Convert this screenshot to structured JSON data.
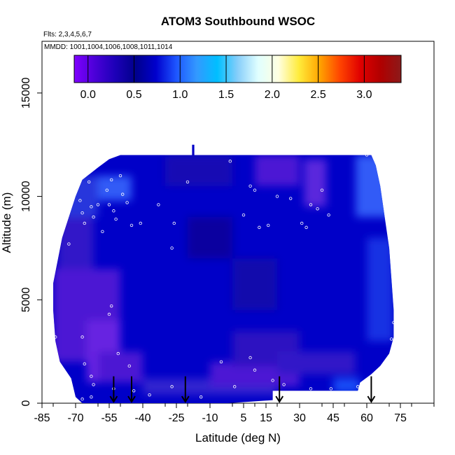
{
  "chart_data": {
    "type": "heatmap",
    "title": "ATOM3 Southbound WSOC",
    "subtitle_flights": "Flts: 2,3,4,5,6,7",
    "subtitle_dates": "MMDD: 1001,1004,1006,1008,1011,1014",
    "xlabel": "Latitude (deg N)",
    "ylabel": "Altitude (m)",
    "xlim": [
      -85,
      90
    ],
    "ylim": [
      0,
      17500
    ],
    "x_ticks": [
      -85,
      -70,
      -55,
      -40,
      -25,
      -10,
      5,
      15,
      30,
      45,
      60,
      75
    ],
    "y_ticks": [
      0,
      5000,
      10000,
      15000
    ],
    "colorbar": {
      "range": [
        -0.15,
        3.4
      ],
      "ticks": [
        0.0,
        0.5,
        1.0,
        1.5,
        2.0,
        2.5,
        3.0
      ],
      "tick_labels": [
        "0.0",
        "0.5",
        "1.0",
        "1.5",
        "2.0",
        "2.5",
        "3.0"
      ],
      "colors": [
        "#8000ff",
        "#4b00d8",
        "#1d00b8",
        "#00008b",
        "#0000cd",
        "#1e56ff",
        "#3399ff",
        "#00bfff",
        "#87cefa",
        "#e0ffff",
        "#ffffe0",
        "#ffeb3b",
        "#ffa500",
        "#ff4500",
        "#e00000",
        "#b00000",
        "#8b1a1a"
      ]
    },
    "field_color_low": "#0000c8",
    "field_color_purple": "#5a1fd6",
    "field_color_light": "#3a6cff",
    "arrow_latitudes": [
      -53,
      -45,
      -21,
      21,
      62
    ],
    "sample_points": [
      [
        -73,
        7700
      ],
      [
        -68,
        9800
      ],
      [
        -67,
        9200
      ],
      [
        -66,
        8700
      ],
      [
        -64,
        10700
      ],
      [
        -63,
        9500
      ],
      [
        -62,
        9000
      ],
      [
        -60,
        9600
      ],
      [
        -58,
        8300
      ],
      [
        -56,
        10300
      ],
      [
        -55,
        9600
      ],
      [
        -54,
        10800
      ],
      [
        -53,
        9300
      ],
      [
        -52,
        8900
      ],
      [
        -50,
        11000
      ],
      [
        -49,
        10100
      ],
      [
        -47,
        9700
      ],
      [
        -45,
        8600
      ],
      [
        -41,
        8700
      ],
      [
        -33,
        9600
      ],
      [
        -20,
        10700
      ],
      [
        -26,
        8700
      ],
      [
        -27,
        7500
      ],
      [
        -55,
        4300
      ],
      [
        -54,
        4700
      ],
      [
        -51,
        2400
      ],
      [
        -46,
        1800
      ],
      [
        -67,
        3200
      ],
      [
        -66,
        1900
      ],
      [
        -63,
        1300
      ],
      [
        -62,
        900
      ],
      [
        -63,
        300
      ],
      [
        -67,
        200
      ],
      [
        -53,
        700
      ],
      [
        -44,
        600
      ],
      [
        -37,
        400
      ],
      [
        -27,
        800
      ],
      [
        -14,
        300
      ],
      [
        -5,
        2000
      ],
      [
        1,
        800
      ],
      [
        8,
        2200
      ],
      [
        10,
        1600
      ],
      [
        18,
        1100
      ],
      [
        23,
        900
      ],
      [
        35,
        700
      ],
      [
        44,
        700
      ],
      [
        56,
        800
      ],
      [
        -1,
        11700
      ],
      [
        8,
        10500
      ],
      [
        10,
        10300
      ],
      [
        20,
        10000
      ],
      [
        26,
        9900
      ],
      [
        31,
        8700
      ],
      [
        33,
        8500
      ],
      [
        35,
        9600
      ],
      [
        38,
        9400
      ],
      [
        40,
        10300
      ],
      [
        43,
        9100
      ],
      [
        12,
        8500
      ],
      [
        16,
        8600
      ],
      [
        5,
        9100
      ],
      [
        60,
        12000
      ],
      [
        72,
        3900
      ],
      [
        71,
        3100
      ],
      [
        -79,
        3200
      ]
    ]
  }
}
